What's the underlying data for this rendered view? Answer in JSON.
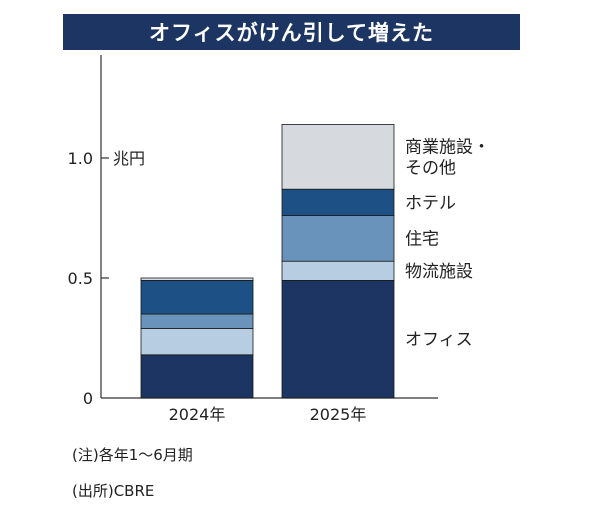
{
  "title": "オフィスがけん引して増えた",
  "notes": {
    "note1": "(注)各年1～6月期",
    "note2": "(出所)CBRE"
  },
  "chart_data": {
    "type": "bar",
    "stacked": true,
    "unit_label": "兆円",
    "categories": [
      "2024年",
      "2025年"
    ],
    "ylim": [
      0,
      1.4
    ],
    "yticks": [
      0,
      0.5,
      1.0
    ],
    "ytick_labels": [
      "0",
      "0.5",
      "1.0"
    ],
    "series": [
      {
        "name": "オフィス",
        "color": "#1c3563",
        "values": [
          0.18,
          0.49
        ]
      },
      {
        "name": "物流施設",
        "color": "#b7cde2",
        "values": [
          0.11,
          0.08
        ]
      },
      {
        "name": "住宅",
        "color": "#6a93bb",
        "values": [
          0.06,
          0.19
        ]
      },
      {
        "name": "ホテル",
        "color": "#1d5186",
        "values": [
          0.14,
          0.11
        ]
      },
      {
        "name": "商業施設・その他",
        "color": "#d6dade",
        "values": [
          0.01,
          0.27
        ]
      }
    ],
    "legend_labels": [
      {
        "series": "商業施設・その他",
        "lines": [
          "商業施設・",
          "その他"
        ]
      },
      {
        "series": "ホテル",
        "lines": [
          "ホテル"
        ]
      },
      {
        "series": "住宅",
        "lines": [
          "住宅"
        ]
      },
      {
        "series": "物流施設",
        "lines": [
          "物流施設"
        ]
      },
      {
        "series": "オフィス",
        "lines": [
          "オフィス"
        ]
      }
    ]
  }
}
